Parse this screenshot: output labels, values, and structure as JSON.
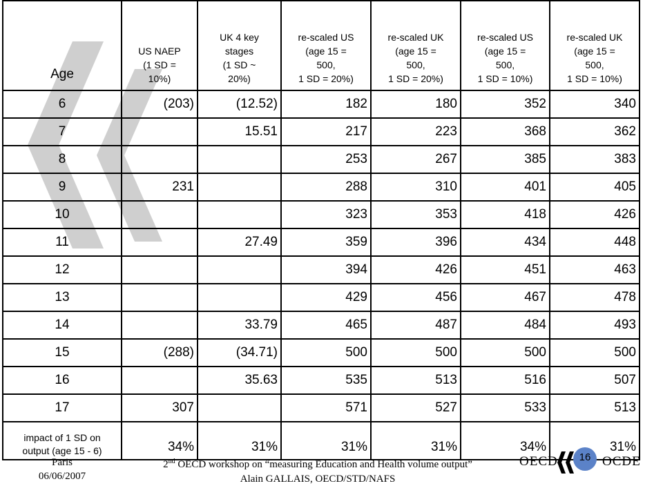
{
  "table": {
    "headers": [
      {
        "lines": [
          "Age"
        ]
      },
      {
        "lines": [
          "US NAEP",
          "(1 SD =",
          "10%)"
        ]
      },
      {
        "lines": [
          "UK 4 key",
          "stages",
          "(1 SD ~",
          "20%)"
        ]
      },
      {
        "lines": [
          "re-scaled US",
          "(age 15 =",
          "500,",
          "1 SD = 20%)"
        ]
      },
      {
        "lines": [
          "re-scaled UK",
          "(age 15 =",
          "500,",
          "1 SD = 20%)"
        ]
      },
      {
        "lines": [
          "re-scaled US",
          "(age 15 =",
          "500,",
          "1 SD = 10%)"
        ]
      },
      {
        "lines": [
          "re-scaled UK",
          "(age 15 =",
          "500,",
          "1 SD = 10%)"
        ]
      }
    ],
    "rows": [
      [
        "6",
        "(203)",
        "(12.52)",
        "182",
        "180",
        "352",
        "340"
      ],
      [
        "7",
        "",
        "15.51",
        "217",
        "223",
        "368",
        "362"
      ],
      [
        "8",
        "",
        "",
        "253",
        "267",
        "385",
        "383"
      ],
      [
        "9",
        "231",
        "",
        "288",
        "310",
        "401",
        "405"
      ],
      [
        "10",
        "",
        "",
        "323",
        "353",
        "418",
        "426"
      ],
      [
        "11",
        "",
        "27.49",
        "359",
        "396",
        "434",
        "448"
      ],
      [
        "12",
        "",
        "",
        "394",
        "426",
        "451",
        "463"
      ],
      [
        "13",
        "",
        "",
        "429",
        "456",
        "467",
        "478"
      ],
      [
        "14",
        "",
        "33.79",
        "465",
        "487",
        "484",
        "493"
      ],
      [
        "15",
        "(288)",
        "(34.71)",
        "500",
        "500",
        "500",
        "500"
      ],
      [
        "16",
        "",
        "35.63",
        "535",
        "513",
        "516",
        "507"
      ],
      [
        "17",
        "307",
        "",
        "571",
        "527",
        "533",
        "513"
      ]
    ],
    "impact": {
      "label_lines": [
        "impact of 1 SD on",
        "output (age 15 - 6)"
      ],
      "values": [
        "34%",
        "31%",
        "31%",
        "31%",
        "34%",
        "31%"
      ]
    }
  },
  "footer": {
    "place": "Paris",
    "date": "06/06/2007",
    "workshop_prefix": "2",
    "workshop_sup": "nd",
    "workshop_rest": " OECD workshop on “measuring Education and Health volume output”",
    "author": "Alain GALLAIS, OECD/STD/NAFS",
    "page_number": "16"
  },
  "logo": {
    "left_text": "OECD",
    "right_text": "OCDE"
  },
  "colors": {
    "chevron": "#cfcfcf",
    "page_badge": "#5b82c8"
  }
}
